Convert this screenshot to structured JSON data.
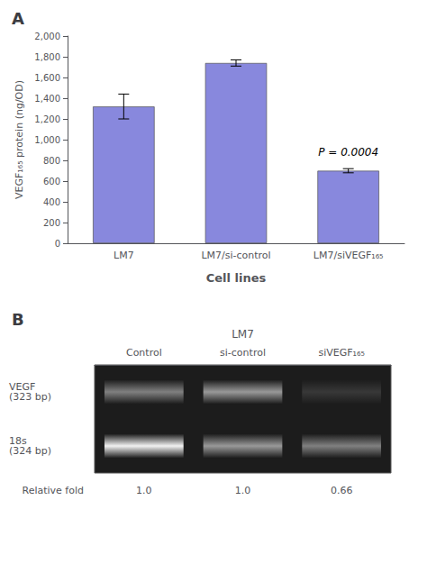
{
  "chart_data": [
    {
      "type": "bar",
      "title": "A",
      "categories": [
        "LM7",
        "LM7/si-control",
        "LM7/siVEGF₁₆₅"
      ],
      "values": [
        1320,
        1740,
        700
      ],
      "errors": [
        120,
        30,
        20
      ],
      "color": "#8888dd",
      "xlabel": "Cell lines",
      "ylabel": "VEGF₁₆₅ protein (ng/OD)",
      "ylim": [
        0,
        2000
      ],
      "yticks": [
        0,
        200,
        400,
        600,
        800,
        1000,
        1200,
        1400,
        1600,
        1800,
        2000
      ],
      "grid": false,
      "annotations": [
        {
          "text": "P = 0.0004",
          "category": "LM7/siVEGF₁₆₅"
        }
      ]
    },
    {
      "type": "heatmap",
      "title": "B",
      "xlabel": "LM7",
      "categories": [
        "Control",
        "si-control",
        "siVEGF₁₆₅"
      ],
      "rows": [
        "VEGF\n(323 bp)",
        "18s\n(324 bp)"
      ],
      "cells": [
        [
          0.5,
          0.6,
          0.22
        ],
        [
          0.95,
          0.6,
          0.5
        ]
      ],
      "relative_fold": {
        "label": "Relative fold",
        "labels": [
          "1.0",
          "1.0",
          "0.66"
        ]
      }
    }
  ]
}
